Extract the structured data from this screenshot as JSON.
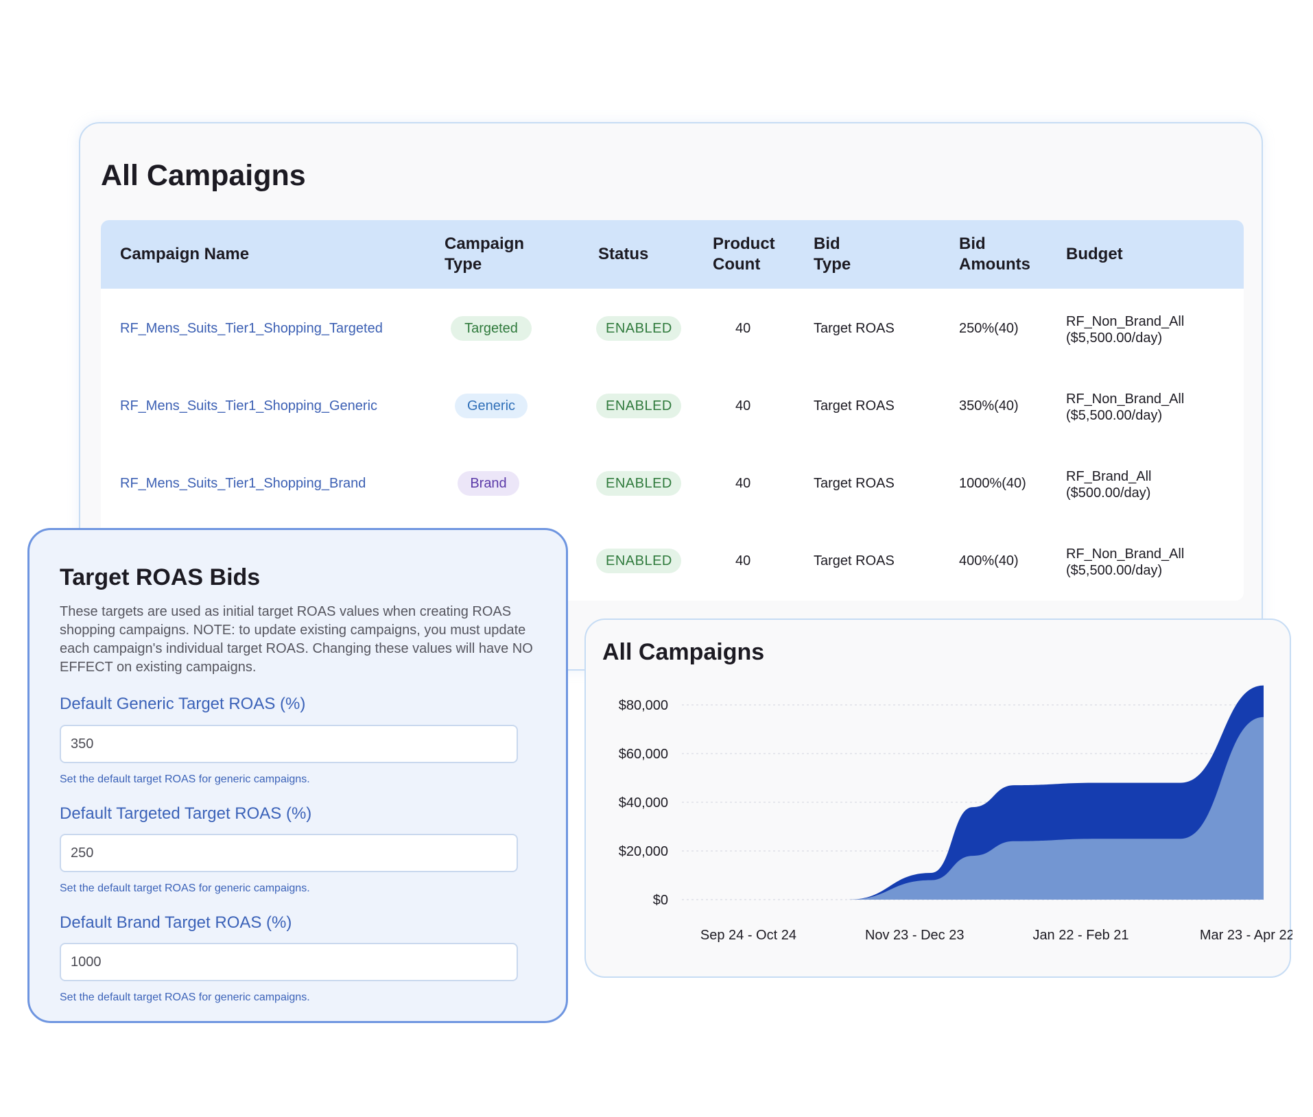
{
  "campaigns_table": {
    "title": "All Campaigns",
    "headers": {
      "campaign_name": "Campaign Name",
      "campaign_type_1": "Campaign",
      "campaign_type_2": "Type",
      "status": "Status",
      "product_count_1": "Product",
      "product_count_2": "Count",
      "bid_type_1": "Bid",
      "bid_type_2": "Type",
      "bid_amounts_1": "Bid",
      "bid_amounts_2": "Amounts",
      "budget": "Budget"
    },
    "rows": [
      {
        "name": "RF_Mens_Suits_Tier1_Shopping_Targeted",
        "type": "Targeted",
        "status": "ENABLED",
        "count": "40",
        "bid_type": "Target ROAS",
        "bid_amount": "250%(40)",
        "budget_1": "RF_Non_Brand_All",
        "budget_2": "($5,500.00/day)"
      },
      {
        "name": "RF_Mens_Suits_Tier1_Shopping_Generic",
        "type": "Generic",
        "status": "ENABLED",
        "count": "40",
        "bid_type": "Target ROAS",
        "bid_amount": "350%(40)",
        "budget_1": "RF_Non_Brand_All",
        "budget_2": "($5,500.00/day)"
      },
      {
        "name": "RF_Mens_Suits_Tier1_Shopping_Brand",
        "type": "Brand",
        "status": "ENABLED",
        "count": "40",
        "bid_type": "Target ROAS",
        "bid_amount": "1000%(40)",
        "budget_1": "RF_Brand_All",
        "budget_2": "($500.00/day)"
      },
      {
        "name": "",
        "type": "",
        "status": "ENABLED",
        "count": "40",
        "bid_type": "Target ROAS",
        "bid_amount": "400%(40)",
        "budget_1": "RF_Non_Brand_All",
        "budget_2": "($5,500.00/day)"
      }
    ]
  },
  "roas_panel": {
    "title": "Target ROAS Bids",
    "description": "These targets are used as initial target ROAS values when creating ROAS shopping campaigns. NOTE: to update existing campaigns, you must update each campaign's individual target ROAS. Changing these values will have NO EFFECT on existing campaigns.",
    "fields": [
      {
        "label": "Default Generic Target ROAS (%)",
        "value": "350",
        "help": "Set the default target ROAS for generic campaigns."
      },
      {
        "label": "Default Targeted Target ROAS (%)",
        "value": "250",
        "help": "Set the default target ROAS for generic campaigns."
      },
      {
        "label": "Default Brand Target ROAS (%)",
        "value": "1000",
        "help": "Set the default target ROAS for generic campaigns."
      }
    ]
  },
  "chart_panel": {
    "title": "All Campaigns"
  },
  "colors": {
    "accent_blue": "#3b62b8",
    "header_bg": "#d2e4fa",
    "series_dark": "#153db0",
    "series_light": "#7396d2",
    "enabled_green": "#2f7a3c"
  },
  "chart_data": {
    "type": "area",
    "title": "All Campaigns",
    "x_labels": [
      "Sep 24 - Oct 24",
      "Nov 23 - Dec 23",
      "Jan 22 - Feb 21",
      "Mar 23 - Apr 22"
    ],
    "y_ticks": [
      "$0",
      "$20,000",
      "$40,000",
      "$60,000",
      "$80,000"
    ],
    "ylim": [
      0,
      80000
    ],
    "stacked": true,
    "grid": true,
    "x": [
      0,
      0.5,
      1,
      1.5,
      1.75,
      2,
      2.5,
      3,
      3.5
    ],
    "series": [
      {
        "values": [
          0,
          0,
          0,
          8000,
          18000,
          24000,
          25000,
          25000,
          75000
        ],
        "color": "#7396d2"
      },
      {
        "values": [
          0,
          0,
          0,
          3000,
          20000,
          23000,
          23000,
          23000,
          13000
        ],
        "color": "#153db0"
      }
    ]
  }
}
